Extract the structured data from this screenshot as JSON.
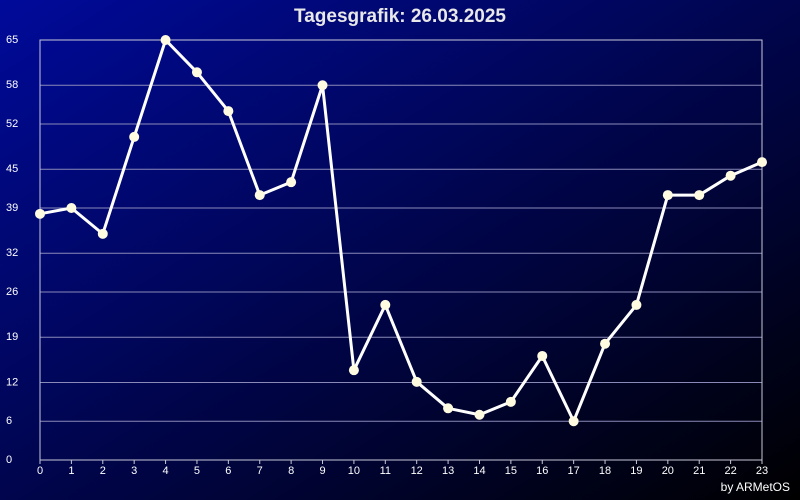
{
  "chart_data": {
    "type": "line",
    "title": "Tagesgrafik: 26.03.2025",
    "footer": "by ARMetOS",
    "x": [
      0,
      1,
      2,
      3,
      4,
      5,
      6,
      7,
      8,
      9,
      10,
      11,
      12,
      13,
      14,
      15,
      16,
      17,
      18,
      19,
      20,
      21,
      22,
      23
    ],
    "values": [
      38.1,
      39,
      35,
      50,
      65,
      60,
      54,
      41,
      43,
      58,
      13.9,
      24,
      12.1,
      8,
      7,
      9,
      16.1,
      6,
      18,
      24,
      41,
      41,
      44,
      46.1
    ],
    "color": "#ffffff",
    "xlim": [
      0,
      23
    ],
    "xticks": [
      0,
      1,
      2,
      3,
      4,
      5,
      6,
      7,
      8,
      9,
      10,
      11,
      12,
      13,
      14,
      15,
      16,
      17,
      18,
      19,
      20,
      21,
      22,
      23
    ],
    "ylim": [
      0,
      65
    ],
    "yticks": [
      0,
      6,
      12,
      19,
      26,
      32,
      39,
      45,
      52,
      58,
      65
    ],
    "grid": true
  }
}
